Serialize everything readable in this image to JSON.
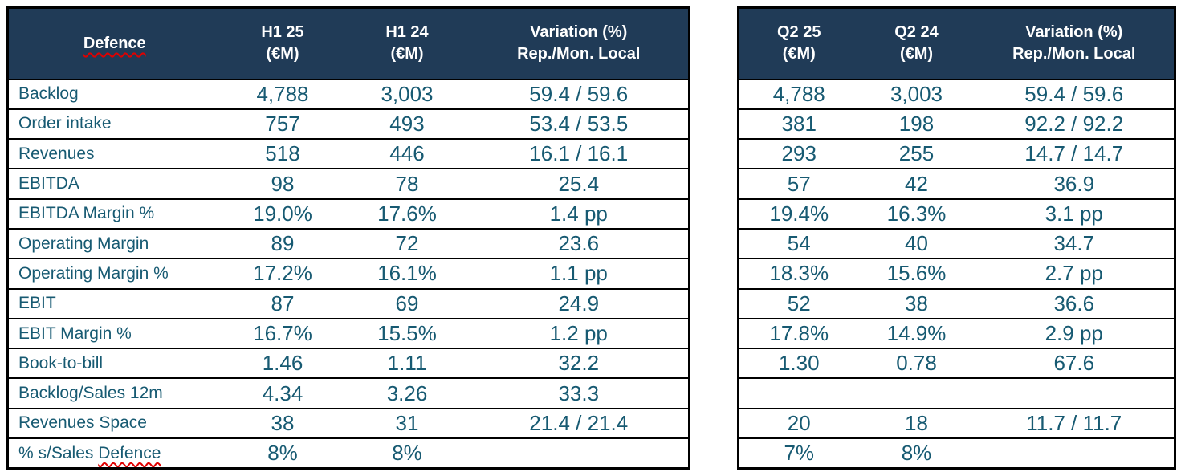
{
  "colors": {
    "header_background": "#203B57",
    "table_text": "#175A72",
    "grid_border": "#000000",
    "spellcheck_underline": "#E00000"
  },
  "left_table": {
    "header": {
      "label": "Defence",
      "c1_line1": "H1 25",
      "c1_line2": "(€M)",
      "c2_line1": "H1 24",
      "c2_line2": "(€M)",
      "c3_line1": "Variation (%)",
      "c3_line2": "Rep./Mon. Local"
    },
    "rows": [
      {
        "label": "Backlog",
        "v1": "4,788",
        "v2": "3,003",
        "variation": "59.4 / 59.6"
      },
      {
        "label": "Order intake",
        "v1": "757",
        "v2": "493",
        "variation": "53.4 / 53.5"
      },
      {
        "label": "Revenues",
        "v1": "518",
        "v2": "446",
        "variation": "16.1 / 16.1"
      },
      {
        "label": "EBITDA",
        "v1": "98",
        "v2": "78",
        "variation": "25.4"
      },
      {
        "label": "EBITDA Margin %",
        "v1": "19.0%",
        "v2": "17.6%",
        "variation": "1.4 pp"
      },
      {
        "label": "Operating Margin",
        "v1": "89",
        "v2": "72",
        "variation": "23.6"
      },
      {
        "label": "Operating Margin %",
        "v1": "17.2%",
        "v2": "16.1%",
        "variation": "1.1 pp"
      },
      {
        "label": "EBIT",
        "v1": "87",
        "v2": "69",
        "variation": "24.9"
      },
      {
        "label": "EBIT Margin %",
        "v1": "16.7%",
        "v2": "15.5%",
        "variation": "1.2 pp"
      },
      {
        "label": "Book-to-bill",
        "v1": "1.46",
        "v2": "1.11",
        "variation": "32.2"
      },
      {
        "label": "Backlog/Sales 12m",
        "v1": "4.34",
        "v2": "3.26",
        "variation": "33.3"
      },
      {
        "label": "Revenues Space",
        "v1": "38",
        "v2": "31",
        "variation": "21.4 / 21.4"
      },
      {
        "label_prefix": "% s/Sales ",
        "label_underlined": "Defence",
        "v1": "8%",
        "v2": "8%",
        "variation": ""
      }
    ]
  },
  "right_table": {
    "header": {
      "c1_line1": "Q2 25",
      "c1_line2": "(€M)",
      "c2_line1": "Q2 24",
      "c2_line2": "(€M)",
      "c3_line1": "Variation (%)",
      "c3_line2": "Rep./Mon. Local"
    },
    "rows": [
      {
        "v1": "4,788",
        "v2": "3,003",
        "variation": "59.4 / 59.6"
      },
      {
        "v1": "381",
        "v2": "198",
        "variation": "92.2 / 92.2"
      },
      {
        "v1": "293",
        "v2": "255",
        "variation": "14.7 / 14.7"
      },
      {
        "v1": "57",
        "v2": "42",
        "variation": "36.9"
      },
      {
        "v1": "19.4%",
        "v2": "16.3%",
        "variation": "3.1 pp"
      },
      {
        "v1": "54",
        "v2": "40",
        "variation": "34.7"
      },
      {
        "v1": "18.3%",
        "v2": "15.6%",
        "variation": "2.7 pp"
      },
      {
        "v1": "52",
        "v2": "38",
        "variation": "36.6"
      },
      {
        "v1": "17.8%",
        "v2": "14.9%",
        "variation": "2.9 pp"
      },
      {
        "v1": "1.30",
        "v2": "0.78",
        "variation": "67.6"
      },
      {
        "v1": "",
        "v2": "",
        "variation": ""
      },
      {
        "v1": "20",
        "v2": "18",
        "variation": "11.7 / 11.7"
      },
      {
        "v1": "7%",
        "v2": "8%",
        "variation": ""
      }
    ]
  }
}
